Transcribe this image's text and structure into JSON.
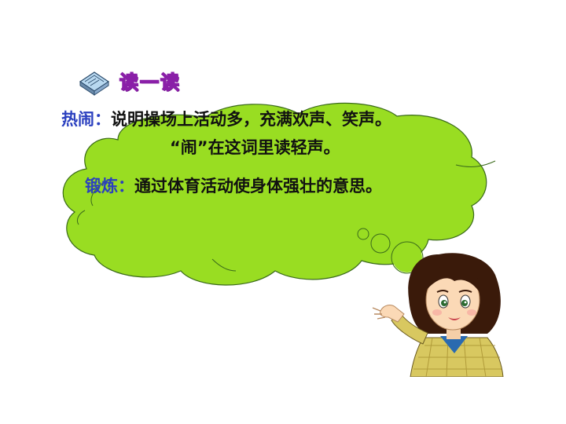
{
  "header": {
    "title": "读一读",
    "icon": "book-icon"
  },
  "entries": [
    {
      "term": "热闹：",
      "lines": [
        "说明操场上活动多，充满欢声、笑声。",
        "“闹”在这词里读轻声。"
      ]
    },
    {
      "term": "锻炼：",
      "lines": [
        "通过体育活动使身体强壮的意思。"
      ]
    }
  ],
  "colors": {
    "cloud": "#99dd22",
    "term": "#2a3fbf",
    "title_fill": "#e8d2ff",
    "title_stroke": "#8a1fa8"
  },
  "illustration": "girl-pointing-icon"
}
